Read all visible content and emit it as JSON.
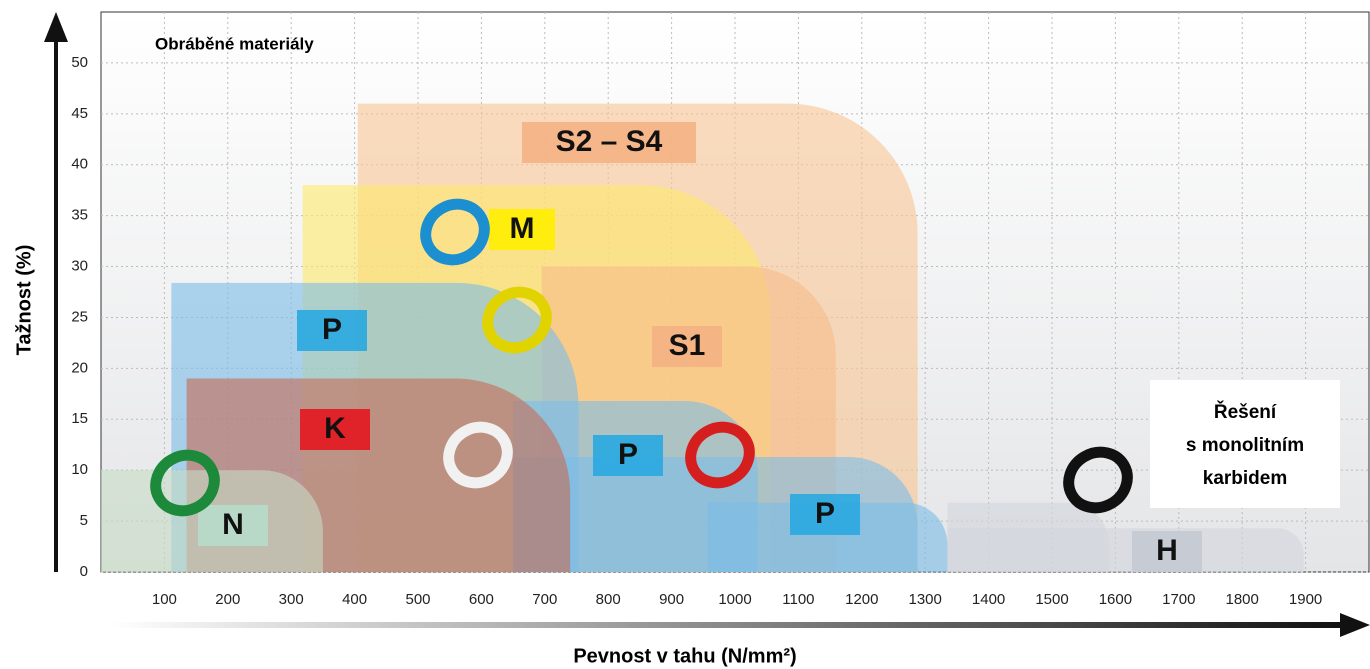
{
  "chart_data": {
    "type": "region",
    "title": "Obráběné materiály",
    "x_label": "Pevnost v tahu (N/mm²)",
    "y_label": "Tažnost (%)",
    "xlim": [
      0,
      2000
    ],
    "ylim": [
      0,
      55
    ],
    "xticks": [
      100,
      200,
      300,
      400,
      500,
      600,
      700,
      800,
      900,
      1000,
      1100,
      1200,
      1300,
      1400,
      1500,
      1600,
      1700,
      1800,
      1900
    ],
    "yticks": [
      0,
      5,
      10,
      15,
      20,
      25,
      30,
      35,
      40,
      45,
      50
    ],
    "grid": true,
    "annotation": [
      "Řešení",
      "s monolitním",
      "karbidem"
    ],
    "series": [
      {
        "name": "S2 – S4",
        "color": "#f9c593",
        "label_color": "#f4b183",
        "x": [
          405,
          1288
        ],
        "y": 46
      },
      {
        "name": "M",
        "color": "#fde96a",
        "label_color": "#ffee00",
        "x": [
          318,
          1056
        ],
        "y": 38
      },
      {
        "name": "S1",
        "color": "#f6bd8a",
        "label_color": "#f4b183",
        "x": [
          695,
          1159
        ],
        "y": 30
      },
      {
        "color": "#d2d6de",
        "x": [
          1335,
          1590
        ],
        "y": 6.8
      },
      {
        "name": "H",
        "color": "#d2d6de",
        "label_color": "#c3c9d3",
        "x": [
          1335,
          1897
        ],
        "y": 4.3
      },
      {
        "name": "P",
        "color": "#7bbde8",
        "label_color": "#29a8e0",
        "x": [
          111,
          753
        ],
        "y": 28.4
      },
      {
        "name": "P",
        "color": "#7bbde8",
        "label_color": "#29a8e0",
        "x": [
          650,
          1036
        ],
        "y": 16.8
      },
      {
        "color": "#7bbde8",
        "x": [
          650,
          1288
        ],
        "y": 11.3
      },
      {
        "name": "P",
        "color": "#7bbde8",
        "label_color": "#29a8e0",
        "x": [
          957,
          1335
        ],
        "y": 6.8
      },
      {
        "name": "K",
        "color": "#c66a55",
        "label_color": "#e3171f",
        "x": [
          135,
          740
        ],
        "y": 19
      },
      {
        "name": "N",
        "color": "#c6dcc4",
        "label_color": "#b7dccb",
        "x": [
          0,
          350
        ],
        "y": 10
      }
    ]
  }
}
